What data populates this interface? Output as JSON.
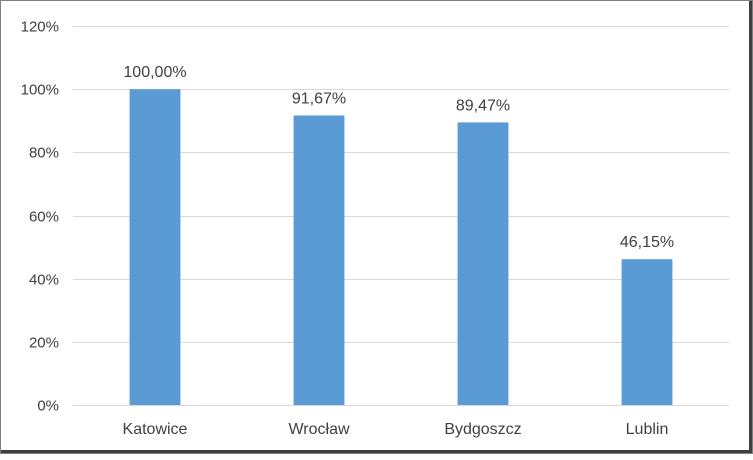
{
  "chart_data": {
    "type": "bar",
    "categories": [
      "Katowice",
      "Wrocław",
      "Bydgoszcz",
      "Lublin"
    ],
    "values": [
      100.0,
      91.67,
      89.47,
      46.15
    ],
    "data_labels": [
      "100,00%",
      "91,67%",
      "89,47%",
      "46,15%"
    ],
    "ylim": [
      0,
      120
    ],
    "y_ticks": [
      0,
      20,
      40,
      60,
      80,
      100,
      120
    ],
    "y_tick_labels": [
      "0%",
      "20%",
      "40%",
      "60%",
      "80%",
      "100%",
      "120%"
    ],
    "grid": true,
    "legend": "none",
    "bar_color": "#5b9bd5",
    "grid_color": "#d9d9d9",
    "text_color": "#404040"
  }
}
